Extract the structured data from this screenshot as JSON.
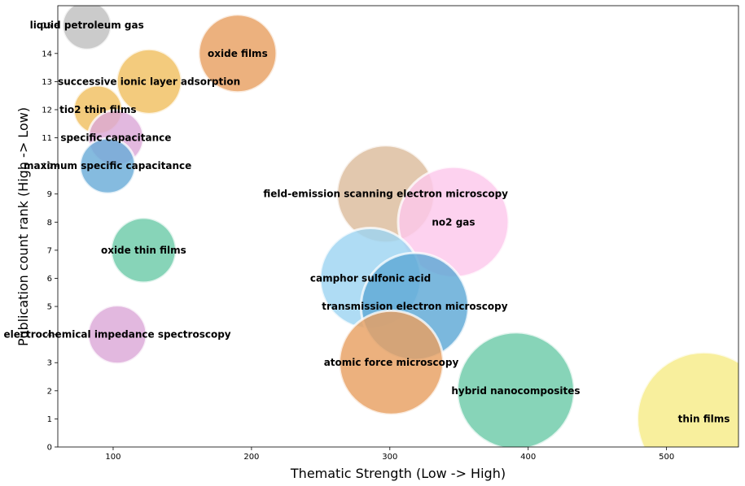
{
  "chart_data": {
    "type": "scatter",
    "title": "",
    "xlabel": "Thematic Strength (Low -> High)",
    "ylabel": "Publication count rank (High -> Low)",
    "xlim": [
      60,
      552
    ],
    "ylim": [
      0,
      15.7
    ],
    "x_ticks": [
      100,
      200,
      300,
      400,
      500
    ],
    "y_ticks": [
      0,
      1,
      2,
      3,
      4,
      5,
      6,
      7,
      8,
      9,
      10,
      11,
      12,
      13,
      14,
      15
    ],
    "grid": false,
    "legend": "none",
    "points": [
      {
        "label": "liquid petroleum gas",
        "x": 81,
        "y": 15,
        "size": 30,
        "color": "#c0c0c0"
      },
      {
        "label": "oxide films",
        "x": 190,
        "y": 14,
        "size": 48,
        "color": "#e8a061"
      },
      {
        "label": "successive ionic layer adsorption",
        "x": 126,
        "y": 13,
        "size": 40,
        "color": "#f0c060"
      },
      {
        "label": "tio2 thin films",
        "x": 89,
        "y": 12,
        "size": 30,
        "color": "#f0c060"
      },
      {
        "label": "specific capacitance",
        "x": 102,
        "y": 11,
        "size": 34,
        "color": "#dca8d8"
      },
      {
        "label": "maximum specific capacitance",
        "x": 96,
        "y": 10,
        "size": 34,
        "color": "#6aacd8"
      },
      {
        "label": "field-emission scanning electron microscopy",
        "x": 297,
        "y": 9,
        "size": 60,
        "color": "#dcbc9c"
      },
      {
        "label": "no2 gas",
        "x": 346,
        "y": 8,
        "size": 68,
        "color": "#fcc8ec"
      },
      {
        "label": "oxide thin films",
        "x": 122,
        "y": 7,
        "size": 40,
        "color": "#6ccaa8"
      },
      {
        "label": "camphor sulfonic acid",
        "x": 286,
        "y": 6,
        "size": 62,
        "color": "#9ed4f2"
      },
      {
        "label": "transmission electron microscopy",
        "x": 318,
        "y": 5,
        "size": 66,
        "color": "#5ea8d6"
      },
      {
        "label": "electrochemical impedance spectroscopy",
        "x": 103,
        "y": 4,
        "size": 36,
        "color": "#dca8d8"
      },
      {
        "label": "atomic force microscopy",
        "x": 301,
        "y": 3,
        "size": 64,
        "color": "#e8a061"
      },
      {
        "label": "hybrid nanocomposites",
        "x": 391,
        "y": 2,
        "size": 72,
        "color": "#6ccaa8"
      },
      {
        "label": "thin films",
        "x": 527,
        "y": 1,
        "size": 82,
        "color": "#f6ec88"
      }
    ]
  }
}
